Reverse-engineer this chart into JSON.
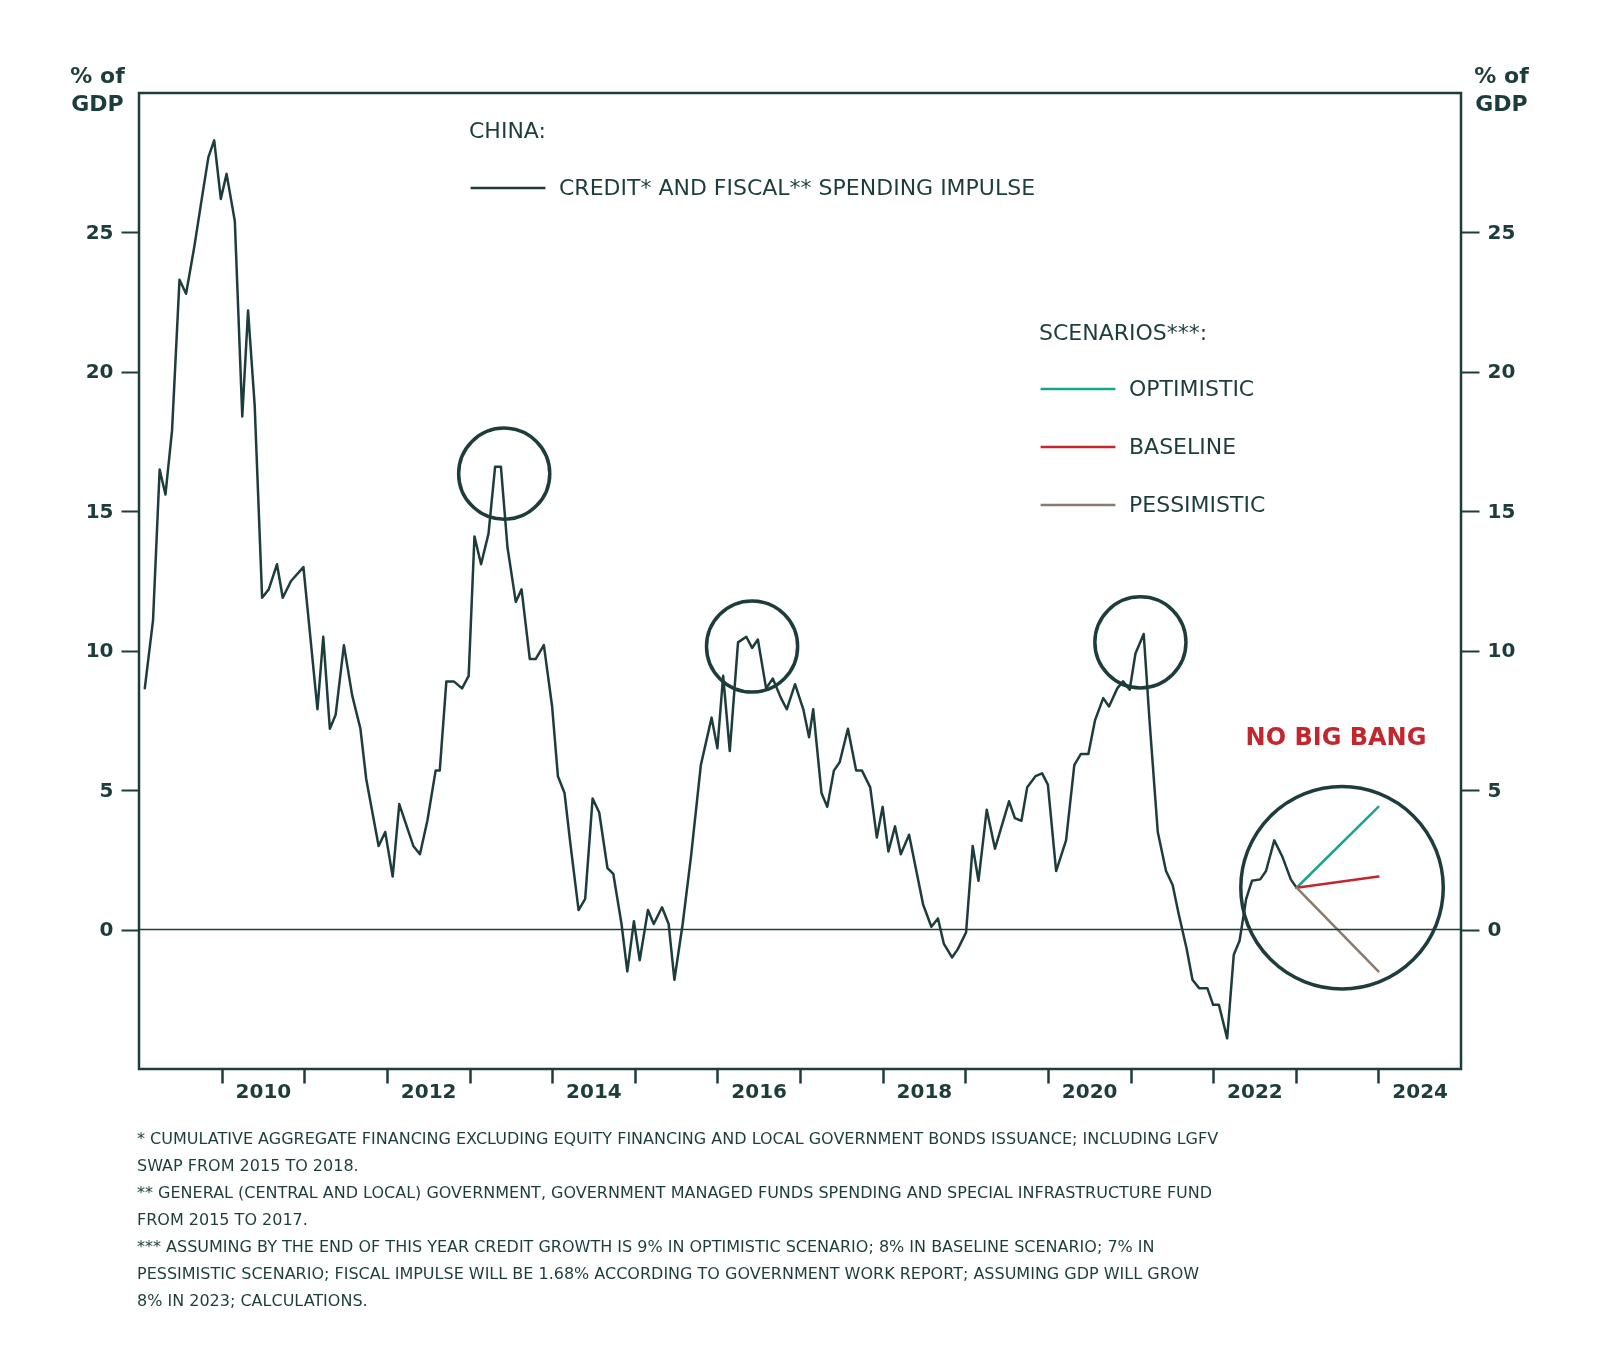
{
  "chart_data": {
    "type": "line",
    "title": "CHINA:",
    "legend_title": "SCENARIOS***:",
    "ylabel": "% of GDP",
    "y2label": "% of GDP",
    "x": [
      2009.07,
      2009.17,
      2009.25,
      2009.32,
      2009.4,
      2009.49,
      2009.57,
      2009.67,
      2009.77,
      2009.84,
      2009.91,
      2009.99,
      2010.06,
      2010.16,
      2010.25,
      2010.32,
      2010.4,
      2010.49,
      2010.57,
      2010.67,
      2010.74,
      2010.84,
      2010.99,
      2011.06,
      2011.16,
      2011.23,
      2011.31,
      2011.38,
      2011.48,
      2011.58,
      2011.68,
      2011.75,
      2011.9,
      2011.98,
      2012.07,
      2012.15,
      2012.32,
      2012.4,
      2012.49,
      2012.59,
      2012.64,
      2012.72,
      2012.81,
      2012.91,
      2012.99,
      2013.06,
      2013.14,
      2013.23,
      2013.31,
      2013.38,
      2013.46,
      2013.56,
      2013.63,
      2013.73,
      2013.8,
      2013.9,
      2014.0,
      2014.07,
      2014.15,
      2014.22,
      2014.32,
      2014.4,
      2014.49,
      2014.57,
      2014.67,
      2014.74,
      2014.84,
      2014.91,
      2014.99,
      2015.06,
      2015.16,
      2015.23,
      2015.33,
      2015.41,
      2015.48,
      2015.58,
      2015.68,
      2015.8,
      2015.93,
      2016.0,
      2016.07,
      2016.15,
      2016.25,
      2016.35,
      2016.42,
      2016.49,
      2016.59,
      2016.67,
      2016.77,
      2016.84,
      2016.94,
      2017.04,
      2017.11,
      2017.16,
      2017.26,
      2017.33,
      2017.41,
      2017.48,
      2017.58,
      2017.68,
      2017.75,
      2017.85,
      2017.93,
      2018.0,
      2018.07,
      2018.15,
      2018.22,
      2018.32,
      2018.49,
      2018.59,
      2018.67,
      2018.74,
      2018.84,
      2018.91,
      2019.01,
      2019.09,
      2019.16,
      2019.26,
      2019.36,
      2019.43,
      2019.53,
      2019.6,
      2019.68,
      2019.75,
      2019.85,
      2019.93,
      2020.0,
      2020.1,
      2020.22,
      2020.32,
      2020.4,
      2020.49,
      2020.57,
      2020.67,
      2020.74,
      2020.84,
      2020.91,
      2020.99,
      2021.06,
      2021.16,
      2021.23,
      2021.33,
      2021.43,
      2021.51,
      2021.58,
      2021.68,
      2021.75,
      2021.83,
      2021.93,
      2022.0,
      2022.07,
      2022.17,
      2022.25,
      2022.32,
      2022.4,
      2022.47,
      2022.57,
      2022.64,
      2022.74,
      2022.84,
      2022.94,
      2023.01,
      2024.0
    ],
    "series": [
      {
        "name": "CREDIT* AND FISCAL** SPENDING IMPULSE",
        "color": "#1d3d3d",
        "values": [
          8.65,
          11.1,
          16.5,
          15.6,
          17.9,
          23.3,
          22.8,
          24.5,
          26.4,
          27.7,
          28.3,
          26.2,
          27.1,
          25.4,
          18.4,
          22.2,
          18.8,
          11.9,
          12.2,
          13.1,
          11.9,
          12.5,
          13.0,
          10.9,
          7.9,
          10.5,
          7.2,
          7.7,
          10.2,
          8.4,
          7.2,
          5.4,
          3.0,
          3.5,
          1.9,
          4.5,
          3.0,
          2.7,
          3.9,
          5.7,
          5.7,
          8.9,
          8.9,
          8.65,
          9.1,
          14.1,
          13.1,
          14.2,
          16.6,
          16.6,
          13.7,
          11.75,
          12.2,
          9.7,
          9.7,
          10.2,
          8.0,
          5.5,
          4.9,
          3.1,
          0.7,
          1.1,
          4.7,
          4.2,
          2.2,
          2.0,
          0.2,
          -1.5,
          0.3,
          -1.1,
          0.7,
          0.2,
          0.8,
          0.2,
          -1.8,
          0.2,
          2.6,
          5.9,
          7.6,
          6.5,
          9.1,
          6.4,
          10.3,
          10.5,
          10.1,
          10.4,
          8.65,
          9.0,
          8.3,
          7.9,
          8.8,
          7.9,
          6.9,
          7.9,
          4.9,
          4.4,
          5.7,
          6.0,
          7.2,
          5.7,
          5.7,
          5.1,
          3.3,
          4.4,
          2.8,
          3.7,
          2.7,
          3.4,
          0.9,
          0.1,
          0.4,
          -0.5,
          -1.0,
          -0.7,
          -0.1,
          3.0,
          1.75,
          4.3,
          2.9,
          3.6,
          4.6,
          4.0,
          3.9,
          5.1,
          5.5,
          5.6,
          5.2,
          2.1,
          3.2,
          5.9,
          6.3,
          6.3,
          7.5,
          8.3,
          8.0,
          8.65,
          8.9,
          8.6,
          9.9,
          10.6,
          7.5,
          3.5,
          2.1,
          1.6,
          0.6,
          -0.7,
          -1.8,
          -2.1,
          -2.1,
          -2.7,
          -2.7,
          -3.9,
          -0.9,
          -0.4,
          1.1,
          1.75,
          1.8,
          2.1,
          3.2,
          2.6,
          1.8,
          1.5,
          null
        ]
      },
      {
        "name": "OPTIMISTIC",
        "color": "#17a689",
        "values": [
          null,
          null,
          null,
          null,
          null,
          null,
          null,
          null,
          null,
          null,
          null,
          null,
          null,
          null,
          null,
          null,
          null,
          null,
          null,
          null,
          null,
          null,
          null,
          null,
          null,
          null,
          null,
          null,
          null,
          null,
          null,
          null,
          null,
          null,
          null,
          null,
          null,
          null,
          null,
          null,
          null,
          null,
          null,
          null,
          null,
          null,
          null,
          null,
          null,
          null,
          null,
          null,
          null,
          null,
          null,
          null,
          null,
          null,
          null,
          null,
          null,
          null,
          null,
          null,
          null,
          null,
          null,
          null,
          null,
          null,
          null,
          null,
          null,
          null,
          null,
          null,
          null,
          null,
          null,
          null,
          null,
          null,
          null,
          null,
          null,
          null,
          null,
          null,
          null,
          null,
          null,
          null,
          null,
          null,
          null,
          null,
          null,
          null,
          null,
          null,
          null,
          null,
          null,
          null,
          null,
          null,
          null,
          null,
          null,
          null,
          null,
          null,
          null,
          null,
          null,
          null,
          null,
          null,
          null,
          null,
          null,
          null,
          null,
          null,
          null,
          null,
          null,
          null,
          null,
          null,
          null,
          null,
          null,
          null,
          null,
          null,
          null,
          null,
          null,
          null,
          null,
          null,
          null,
          null,
          null,
          null,
          null,
          null,
          null,
          null,
          null,
          null,
          null,
          null,
          null,
          null,
          null,
          null,
          null,
          null,
          null,
          1.5,
          4.4
        ]
      },
      {
        "name": "BASELINE",
        "color": "#c4262e",
        "values": [
          null,
          null,
          null,
          null,
          null,
          null,
          null,
          null,
          null,
          null,
          null,
          null,
          null,
          null,
          null,
          null,
          null,
          null,
          null,
          null,
          null,
          null,
          null,
          null,
          null,
          null,
          null,
          null,
          null,
          null,
          null,
          null,
          null,
          null,
          null,
          null,
          null,
          null,
          null,
          null,
          null,
          null,
          null,
          null,
          null,
          null,
          null,
          null,
          null,
          null,
          null,
          null,
          null,
          null,
          null,
          null,
          null,
          null,
          null,
          null,
          null,
          null,
          null,
          null,
          null,
          null,
          null,
          null,
          null,
          null,
          null,
          null,
          null,
          null,
          null,
          null,
          null,
          null,
          null,
          null,
          null,
          null,
          null,
          null,
          null,
          null,
          null,
          null,
          null,
          null,
          null,
          null,
          null,
          null,
          null,
          null,
          null,
          null,
          null,
          null,
          null,
          null,
          null,
          null,
          null,
          null,
          null,
          null,
          null,
          null,
          null,
          null,
          null,
          null,
          null,
          null,
          null,
          null,
          null,
          null,
          null,
          null,
          null,
          null,
          null,
          null,
          null,
          null,
          null,
          null,
          null,
          null,
          null,
          null,
          null,
          null,
          null,
          null,
          null,
          null,
          null,
          null,
          null,
          null,
          null,
          null,
          null,
          null,
          null,
          null,
          null,
          null,
          null,
          null,
          null,
          null,
          null,
          null,
          null,
          null,
          null,
          1.5,
          1.9
        ]
      },
      {
        "name": "PESSIMISTIC",
        "color": "#8c7a6b",
        "values": [
          null,
          null,
          null,
          null,
          null,
          null,
          null,
          null,
          null,
          null,
          null,
          null,
          null,
          null,
          null,
          null,
          null,
          null,
          null,
          null,
          null,
          null,
          null,
          null,
          null,
          null,
          null,
          null,
          null,
          null,
          null,
          null,
          null,
          null,
          null,
          null,
          null,
          null,
          null,
          null,
          null,
          null,
          null,
          null,
          null,
          null,
          null,
          null,
          null,
          null,
          null,
          null,
          null,
          null,
          null,
          null,
          null,
          null,
          null,
          null,
          null,
          null,
          null,
          null,
          null,
          null,
          null,
          null,
          null,
          null,
          null,
          null,
          null,
          null,
          null,
          null,
          null,
          null,
          null,
          null,
          null,
          null,
          null,
          null,
          null,
          null,
          null,
          null,
          null,
          null,
          null,
          null,
          null,
          null,
          null,
          null,
          null,
          null,
          null,
          null,
          null,
          null,
          null,
          null,
          null,
          null,
          null,
          null,
          null,
          null,
          null,
          null,
          null,
          null,
          null,
          null,
          null,
          null,
          null,
          null,
          null,
          null,
          null,
          null,
          null,
          null,
          null,
          null,
          null,
          null,
          null,
          null,
          null,
          null,
          null,
          null,
          null,
          null,
          null,
          null,
          null,
          null,
          null,
          null,
          null,
          null,
          null,
          null,
          null,
          null,
          null,
          null,
          null,
          null,
          null,
          null,
          null,
          null,
          null,
          null,
          null,
          1.5,
          -1.5
        ]
      }
    ],
    "xlim": [
      2009,
      2025
    ],
    "xticks": [
      {
        "value": 2010,
        "label": null
      },
      {
        "value": 2010.5,
        "label": "2010"
      },
      {
        "value": 2011,
        "label": null
      },
      {
        "value": 2012,
        "label": null
      },
      {
        "value": 2012.5,
        "label": "2012"
      },
      {
        "value": 2013,
        "label": null
      },
      {
        "value": 2014,
        "label": null
      },
      {
        "value": 2014.5,
        "label": "2014"
      },
      {
        "value": 2015,
        "label": null
      },
      {
        "value": 2016,
        "label": null
      },
      {
        "value": 2016.5,
        "label": "2016"
      },
      {
        "value": 2017,
        "label": null
      },
      {
        "value": 2018,
        "label": null
      },
      {
        "value": 2018.5,
        "label": "2018"
      },
      {
        "value": 2019,
        "label": null
      },
      {
        "value": 2020,
        "label": null
      },
      {
        "value": 2020.5,
        "label": "2020"
      },
      {
        "value": 2021,
        "label": null
      },
      {
        "value": 2022,
        "label": null
      },
      {
        "value": 2022.5,
        "label": "2022"
      },
      {
        "value": 2023,
        "label": null
      },
      {
        "value": 2024,
        "label": null
      },
      {
        "value": 2024.5,
        "label": "2024"
      }
    ],
    "ylim": [
      -5,
      30
    ],
    "yticks": [
      0,
      5,
      10,
      15,
      20,
      25
    ],
    "y2lim": [
      -5,
      30
    ],
    "y2ticks": [
      0,
      5,
      10,
      15,
      20,
      25
    ],
    "ref_lines": [
      {
        "axis": "y",
        "value": 0
      }
    ],
    "grid": false,
    "legend": "top",
    "annotations": [
      "NO BIG BANG",
      "* CUMULATIVE AGGREGATE FINANCING EXCLUDING EQUITY FINANCING AND LOCAL GOVERNMENT BONDS ISSUANCE; INCLUDING LGFV SWAP FROM 2015 TO 2018.",
      "** GENERAL (CENTRAL AND LOCAL) GOVERNMENT, GOVERNMENT MANAGED FUNDS SPENDING AND SPECIAL INFRASTRUCTURE FUND FROM 2015 TO 2017.",
      "*** ASSUMING BY THE END OF THIS YEAR CREDIT GROWTH IS 9% IN OPTIMISTIC SCENARIO; 8% IN BASELINE SCENARIO; 7% IN PESSIMISTIC SCENARIO; FISCAL IMPULSE WILL BE 1.68% ACCORDING TO GOVERNMENT WORK REPORT; ASSUMING GDP WILL GROW 8% IN 2023; CALCULATIONS."
    ]
  }
}
